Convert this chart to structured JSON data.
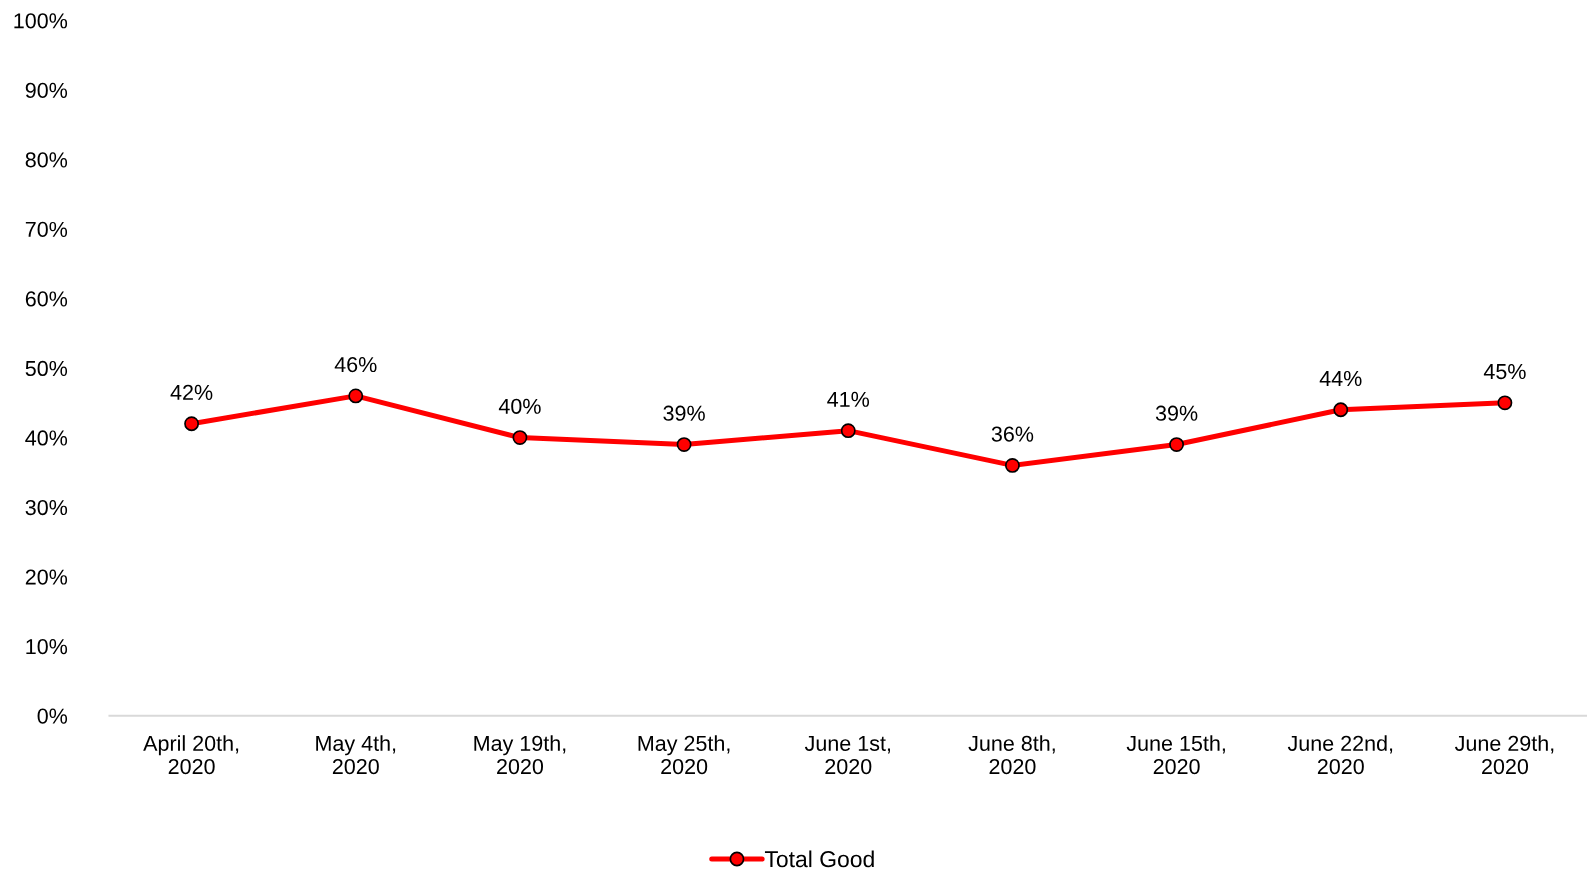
{
  "chart_data": {
    "type": "line",
    "categories": [
      "April 20th,\n2020",
      "May 4th,\n2020",
      "May 19th,\n2020",
      "May 25th,\n2020",
      "June 1st,\n2020",
      "June 8th,\n2020",
      "June 15th,\n2020",
      "June 22nd,\n2020",
      "June 29th,\n2020"
    ],
    "series": [
      {
        "name": "Total Good",
        "color": "#ff0000",
        "values": [
          42,
          46,
          40,
          39,
          41,
          36,
          39,
          44,
          45
        ],
        "value_labels": [
          "42%",
          "46%",
          "40%",
          "39%",
          "41%",
          "36%",
          "39%",
          "44%",
          "45%"
        ]
      }
    ],
    "ylim": [
      0,
      100
    ],
    "yticks": [
      {
        "value": 0,
        "label": "0%"
      },
      {
        "value": 10,
        "label": "10%"
      },
      {
        "value": 20,
        "label": "20%"
      },
      {
        "value": 30,
        "label": "30%"
      },
      {
        "value": 40,
        "label": "40%"
      },
      {
        "value": 50,
        "label": "50%"
      },
      {
        "value": 60,
        "label": "60%"
      },
      {
        "value": 70,
        "label": "70%"
      },
      {
        "value": 80,
        "label": "80%"
      },
      {
        "value": 90,
        "label": "90%"
      },
      {
        "value": 100,
        "label": "100%"
      }
    ],
    "grid": false,
    "legend": "bottom",
    "marker": "circle",
    "line_style": "solid"
  }
}
